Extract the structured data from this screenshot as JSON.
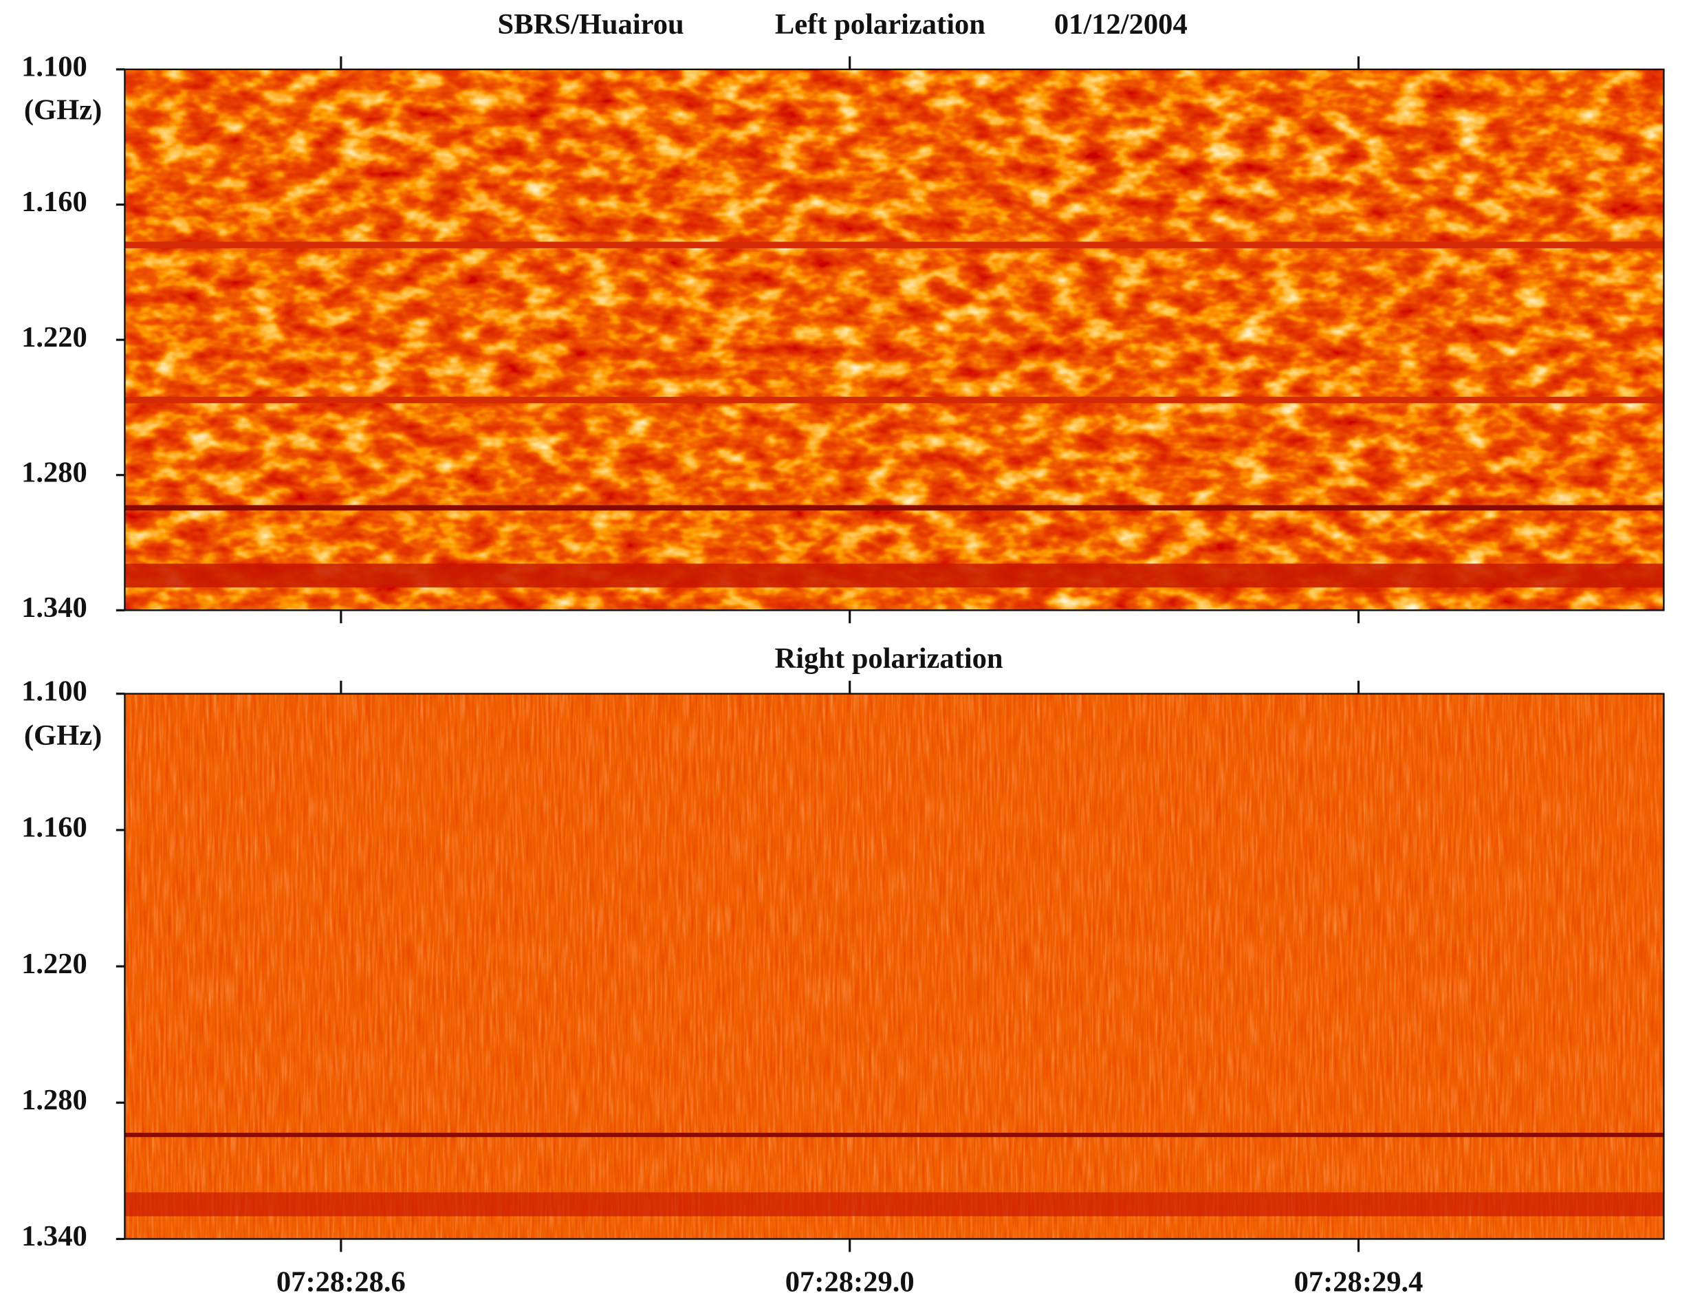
{
  "chart_data": [
    {
      "type": "spectrogram",
      "station": "SBRS/Huairou",
      "title": "Left polarization",
      "date": "01/12/2004",
      "ylabel": "(GHz)",
      "ylim": [
        1.1,
        1.34
      ],
      "yticks": [
        {
          "value": 1.1,
          "label": "1.100"
        },
        {
          "value": 1.16,
          "label": "1.160"
        },
        {
          "value": 1.22,
          "label": "1.220"
        },
        {
          "value": 1.28,
          "label": "1.280"
        },
        {
          "value": 1.34,
          "label": "1.340"
        }
      ]
    },
    {
      "type": "spectrogram",
      "title": "Right polarization",
      "ylabel": "(GHz)",
      "ylim": [
        1.1,
        1.34
      ],
      "yticks": [
        {
          "value": 1.1,
          "label": "1.100"
        },
        {
          "value": 1.16,
          "label": "1.160"
        },
        {
          "value": 1.22,
          "label": "1.220"
        },
        {
          "value": 1.28,
          "label": "1.280"
        },
        {
          "value": 1.34,
          "label": "1.340"
        }
      ],
      "xlim": [
        "07:28:28.43",
        "07:28:29.64"
      ],
      "xticks": [
        "07:28:28.6",
        "07:28:29.0",
        "07:28:29.4"
      ]
    }
  ]
}
